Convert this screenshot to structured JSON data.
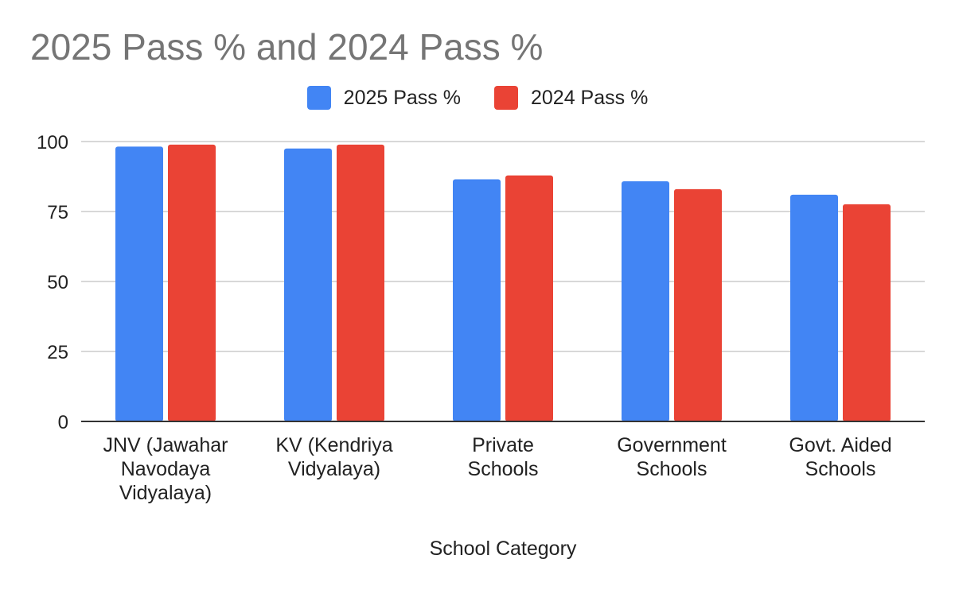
{
  "chart_data": {
    "type": "bar",
    "title": "2025 Pass % and 2024 Pass %",
    "xlabel": "School Category",
    "ylabel": "",
    "ylim": [
      0,
      100
    ],
    "yticks": [
      0,
      25,
      50,
      75,
      100
    ],
    "categories": [
      [
        "JNV (Jawahar",
        "Navodaya",
        "Vidyalaya)"
      ],
      [
        "KV (Kendriya",
        "Vidyalaya)"
      ],
      [
        "Private",
        "Schools"
      ],
      [
        "Government",
        "Schools"
      ],
      [
        "Govt. Aided",
        "Schools"
      ]
    ],
    "series": [
      {
        "name": "2025 Pass %",
        "color": "#4285f4",
        "values": [
          98.2,
          97.5,
          86.5,
          85.8,
          81.0
        ]
      },
      {
        "name": "2024 Pass %",
        "color": "#ea4335",
        "values": [
          98.9,
          98.9,
          87.9,
          83.0,
          77.6
        ]
      }
    ],
    "grid": true,
    "legend_position": "top"
  }
}
